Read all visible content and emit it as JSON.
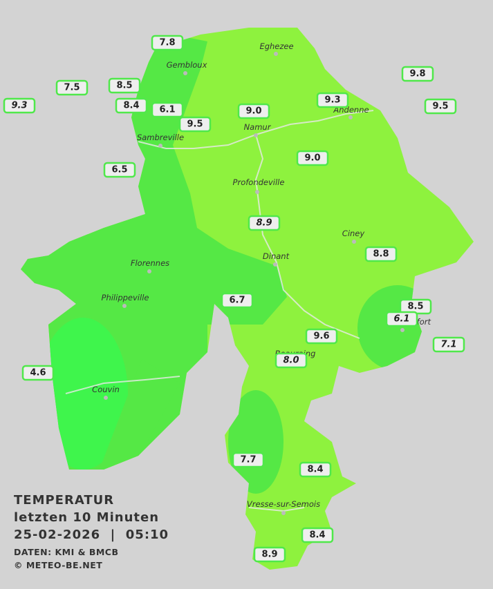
{
  "title": {
    "lines": [
      "TEMPERATUR",
      "letzten 10 Minuten",
      "25-02-2026  |  05:10"
    ],
    "source": "DATEN: KMI & BMCB",
    "credit": "© METEO-BE.NET"
  },
  "places": [
    "Eghezee",
    "Gembloux",
    "Andenne",
    "Namur",
    "Sambreville",
    "Profondeville",
    "Ciney",
    "Dinant",
    "Florennes",
    "Philippeville",
    "Rochefort",
    "Beauraing",
    "Couvin",
    "Vresse-sur-Semois"
  ],
  "readings": [
    "7.8",
    "7.5",
    "8.5",
    "8.4",
    "6.1",
    "9.3",
    "9.5",
    "9.0",
    "9.3",
    "9.8",
    "9.5",
    "9.0",
    "6.5",
    "8.9",
    "8.8",
    "6.7",
    "8.5",
    "6.1",
    "7.1",
    "9.6",
    "8.0",
    "4.6",
    "7.7",
    "8.4",
    "8.4",
    "8.9"
  ]
}
